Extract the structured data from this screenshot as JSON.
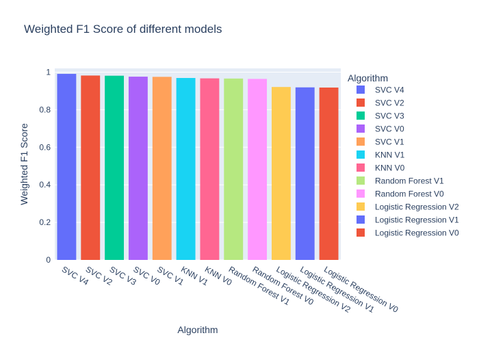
{
  "chart_data": {
    "type": "bar",
    "title": "Weighted F1 Score of different models",
    "xlabel": "Algorithm",
    "ylabel": "Weighted F1 Score",
    "ylim": [
      0,
      1.02
    ],
    "yticks": [
      0,
      0.2,
      0.4,
      0.6,
      0.8,
      1
    ],
    "grid": true,
    "legend": {
      "title": "Algorithm",
      "placement": "right"
    },
    "categories": [
      "SVC V4",
      "SVC V2",
      "SVC V3",
      "SVC V0",
      "SVC V1",
      "KNN V1",
      "KNN V0",
      "Random Forest V1",
      "Random Forest V0",
      "Logistic Regression V2",
      "Logistic Regression V1",
      "Logistic Regression V0"
    ],
    "values": [
      0.991,
      0.982,
      0.981,
      0.976,
      0.975,
      0.969,
      0.967,
      0.966,
      0.964,
      0.921,
      0.919,
      0.918
    ],
    "colors": [
      "#636efa",
      "#EF553B",
      "#00cc96",
      "#ab63fa",
      "#FFA15A",
      "#19d3f3",
      "#FF6692",
      "#B6E880",
      "#FF97FF",
      "#FECB52",
      "#636efa",
      "#EF553B"
    ]
  }
}
